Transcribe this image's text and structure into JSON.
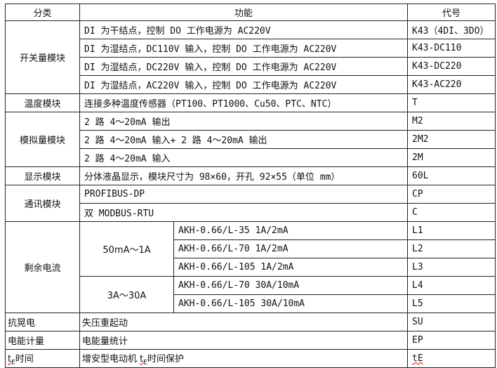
{
  "headers": {
    "category": "分类",
    "function": "功能",
    "code": "代号"
  },
  "switch": {
    "category": "开关量模块",
    "rows": [
      {
        "function": "DI 为干结点，控制 DO 工作电源为 AC220V",
        "code": "K43（4DI、3DO）"
      },
      {
        "function": "DI 为湿结点，DC110V 输入，控制 DO 工作电源为 AC220V",
        "code": "K43-DC110"
      },
      {
        "function": "DI 为湿结点，DC220V 输入，控制 DO 工作电源为 AC220V",
        "code": "K43-DC220"
      },
      {
        "function": "DI 为湿结点，AC220V 输入，控制 DO 工作电源为 AC220V",
        "code": "K43-AC220"
      }
    ]
  },
  "temp": {
    "category": "温度模块",
    "function": "连接多种温度传感器（PT100、PT1000、Cu50、PTC、NTC）",
    "code": "T"
  },
  "analog": {
    "category": "模拟量模块",
    "rows": [
      {
        "function": "2 路 4～20mA 输出",
        "code": "M2"
      },
      {
        "function": "2 路 4～20mA 输入+ 2 路 4～20mA 输出",
        "code": "2M2"
      },
      {
        "function": "2 路 4～20mA 输入",
        "code": "2M"
      }
    ]
  },
  "display": {
    "category": "显示模块",
    "function": "分体液晶显示，模块尺寸为 98×60，开孔 92×55（单位 mm）",
    "code": "60L"
  },
  "comm": {
    "category": "通讯模块",
    "rows": [
      {
        "function": "PROFIBUS-DP",
        "code": "CP"
      },
      {
        "function": "双 MODBUS-RTU",
        "code": "C"
      }
    ]
  },
  "residual": {
    "category": "剩余电流",
    "range1": "50mA～1A",
    "range2": "3A～30A",
    "rows": [
      {
        "function": "AKH-0.66/L-35  1A/2mA",
        "code": "L1"
      },
      {
        "function": "AKH-0.66/L-70  1A/2mA",
        "code": "L2"
      },
      {
        "function": "AKH-0.66/L-105  1A/2mA",
        "code": "L3"
      },
      {
        "function": "AKH-0.66/L-70  30A/10mA",
        "code": "L4"
      },
      {
        "function": "AKH-0.66/L-105  30A/10mA",
        "code": "L5"
      }
    ]
  },
  "antisag": {
    "category": "抗晃电",
    "function": "失压重起动",
    "code": "SU"
  },
  "energy": {
    "category": "电能计量",
    "function": "电能量统计",
    "code": "EP"
  },
  "te": {
    "category_t": "t",
    "category_sub": "E",
    "category_rest": "时间",
    "function_pre": "增安型电动机 ",
    "function_t": "t",
    "function_sub": "E",
    "function_rest": "时间保护",
    "code": "tE"
  }
}
